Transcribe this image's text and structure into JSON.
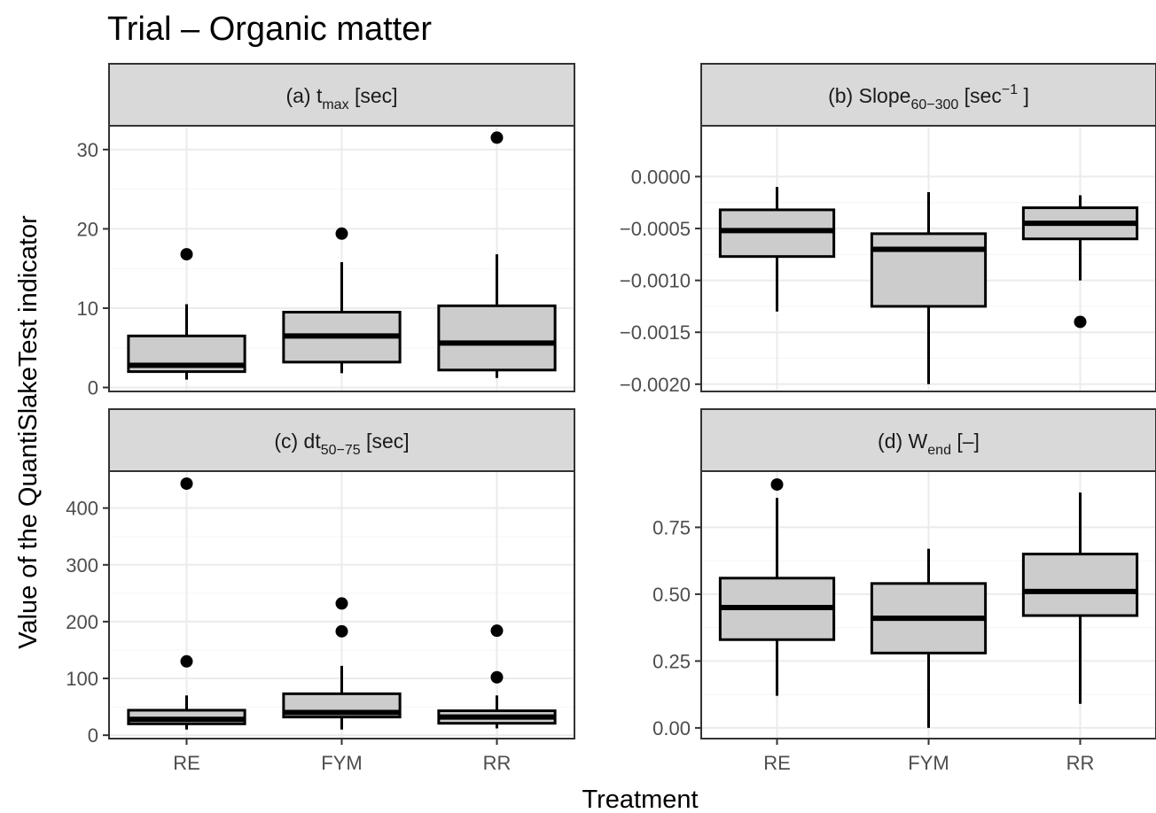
{
  "title": "Trial – Organic matter",
  "xlabel": "Treatment",
  "ylabel": "Value of the QuantiSlakeTest indicator",
  "colors": {
    "box_fill": "#cccccc",
    "strip_fill": "#d9d9d9",
    "line": "#000000",
    "grid_major": "#ebebeb",
    "grid_minor": "#f5f5f5",
    "tick_text": "#4d4d4d"
  },
  "chart_data": [
    {
      "type": "box",
      "strip": {
        "pre": "(a) t",
        "sub": "max",
        "sup": "",
        "post": " [sec]"
      },
      "categories": [
        "RE",
        "FYM",
        "RR"
      ],
      "ylim": [
        -0.5,
        33
      ],
      "yticks": [
        0,
        10,
        20,
        30
      ],
      "yticklabels": [
        "0",
        "10",
        "20",
        "30"
      ],
      "grid": true,
      "boxes": [
        {
          "min": 1,
          "q1": 2,
          "median": 2.8,
          "q3": 6.5,
          "max": 10.5,
          "outliers": [
            16.8
          ]
        },
        {
          "min": 1.8,
          "q1": 3.2,
          "median": 6.5,
          "q3": 9.5,
          "max": 15.8,
          "outliers": [
            19.4
          ]
        },
        {
          "min": 1.2,
          "q1": 2.2,
          "median": 5.6,
          "q3": 10.3,
          "max": 16.8,
          "outliers": [
            31.5
          ]
        }
      ]
    },
    {
      "type": "box",
      "strip": {
        "pre": "(b) Slope",
        "sub": "60−300",
        "sup": "−1",
        "post": " [sec",
        "post2": " ]"
      },
      "categories": [
        "RE",
        "FYM",
        "RR"
      ],
      "ylim": [
        -0.00207,
        0.00049
      ],
      "yticks": [
        0,
        -0.0005,
        -0.001,
        -0.0015,
        -0.002
      ],
      "yticklabels": [
        "0.0000",
        "−0.0005",
        "−0.0010",
        "−0.0015",
        "−0.0020"
      ],
      "grid": true,
      "boxes": [
        {
          "min": -0.0013,
          "q1": -0.00077,
          "median": -0.00052,
          "q3": -0.00032,
          "max": -0.0001,
          "outliers": []
        },
        {
          "min": -0.002,
          "q1": -0.00125,
          "median": -0.0007,
          "q3": -0.00055,
          "max": -0.00015,
          "outliers": []
        },
        {
          "min": -0.001,
          "q1": -0.0006,
          "median": -0.00045,
          "q3": -0.0003,
          "max": -0.00018,
          "outliers": [
            -0.0014
          ]
        }
      ]
    },
    {
      "type": "box",
      "strip": {
        "pre": "(c) dt",
        "sub": "50−75",
        "sup": "",
        "post": " [sec]"
      },
      "categories": [
        "RE",
        "FYM",
        "RR"
      ],
      "ylim": [
        -6,
        465
      ],
      "yticks": [
        0,
        100,
        200,
        300,
        400
      ],
      "yticklabels": [
        "0",
        "100",
        "200",
        "300",
        "400"
      ],
      "grid": true,
      "boxes": [
        {
          "min": 10,
          "q1": 20,
          "median": 28,
          "q3": 44,
          "max": 70,
          "outliers": [
            130,
            443
          ]
        },
        {
          "min": 10,
          "q1": 32,
          "median": 40,
          "q3": 73,
          "max": 122,
          "outliers": [
            183,
            232
          ]
        },
        {
          "min": 12,
          "q1": 21,
          "median": 32,
          "q3": 43,
          "max": 70,
          "outliers": [
            102,
            184
          ]
        }
      ]
    },
    {
      "type": "box",
      "strip": {
        "pre": "(d) W",
        "sub": "end",
        "sup": "",
        "post": " [–]"
      },
      "categories": [
        "RE",
        "FYM",
        "RR"
      ],
      "ylim": [
        -0.04,
        0.96
      ],
      "yticks": [
        0,
        0.25,
        0.5,
        0.75
      ],
      "yticklabels": [
        "0.00",
        "0.25",
        "0.50",
        "0.75"
      ],
      "grid": true,
      "boxes": [
        {
          "min": 0.12,
          "q1": 0.33,
          "median": 0.45,
          "q3": 0.56,
          "max": 0.86,
          "outliers": [
            0.91
          ]
        },
        {
          "min": 0.0,
          "q1": 0.28,
          "median": 0.41,
          "q3": 0.54,
          "max": 0.67,
          "outliers": []
        },
        {
          "min": 0.09,
          "q1": 0.42,
          "median": 0.51,
          "q3": 0.65,
          "max": 0.88,
          "outliers": []
        }
      ]
    }
  ]
}
